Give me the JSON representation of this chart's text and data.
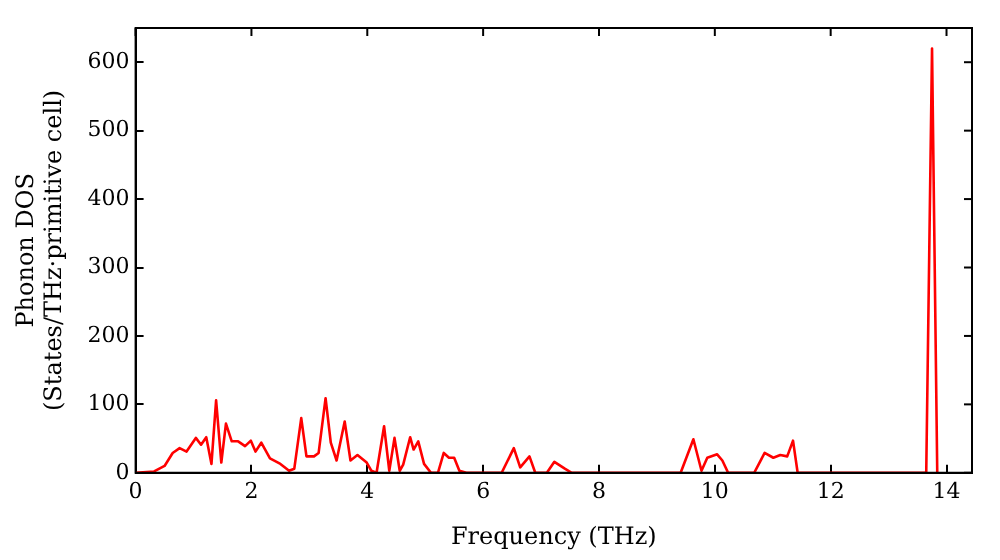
{
  "chart_data": {
    "type": "line",
    "xlabel": "Frequency (THz)",
    "ylabel": "Phonon DOS\n(States/THz·primitive cell)",
    "xlim": [
      0,
      14.44
    ],
    "ylim": [
      0,
      650
    ],
    "xticks": [
      0,
      2,
      4,
      6,
      8,
      10,
      12,
      14
    ],
    "yticks": [
      0,
      100,
      200,
      300,
      400,
      500,
      600
    ],
    "grid": false,
    "legend": false,
    "marker": "none",
    "line_style": "solid",
    "series": [
      {
        "color": "#ff0000",
        "x": [
          0,
          0.32,
          0.5,
          0.64,
          0.76,
          0.88,
          1.04,
          1.13,
          1.22,
          1.31,
          1.39,
          1.48,
          1.56,
          1.66,
          1.77,
          1.89,
          1.99,
          2.07,
          2.17,
          2.32,
          2.5,
          2.65,
          2.74,
          2.86,
          2.95,
          3.08,
          3.16,
          3.28,
          3.37,
          3.47,
          3.61,
          3.71,
          3.83,
          3.99,
          4.07,
          4.16,
          4.29,
          4.38,
          4.47,
          4.56,
          4.62,
          4.74,
          4.8,
          4.88,
          4.98,
          5.1,
          5.22,
          5.32,
          5.41,
          5.5,
          5.59,
          5.71,
          6.32,
          6.53,
          6.64,
          6.8,
          6.9,
          7.1,
          7.23,
          7.41,
          7.53,
          9.41,
          9.63,
          9.77,
          9.87,
          10.04,
          10.13,
          10.23,
          10.68,
          10.86,
          11.01,
          11.13,
          11.25,
          11.35,
          11.43,
          13.65,
          13.75,
          13.84
        ],
        "values": [
          0,
          2,
          10,
          29,
          36,
          31,
          51,
          41,
          52,
          13,
          106,
          15,
          72,
          46,
          46,
          39,
          47,
          31,
          44,
          21,
          13,
          3,
          6,
          80,
          24,
          24,
          29,
          109,
          44,
          18,
          75,
          18,
          26,
          15,
          3,
          0,
          68,
          3,
          51,
          3,
          12,
          52,
          34,
          46,
          13,
          0,
          0,
          29,
          22,
          22,
          3,
          0,
          0,
          36,
          8,
          24,
          0,
          0,
          16,
          6,
          0,
          0,
          49,
          3,
          22,
          27,
          18,
          0,
          0,
          29,
          22,
          26,
          24,
          47,
          0,
          0,
          620,
          0
        ]
      }
    ]
  }
}
